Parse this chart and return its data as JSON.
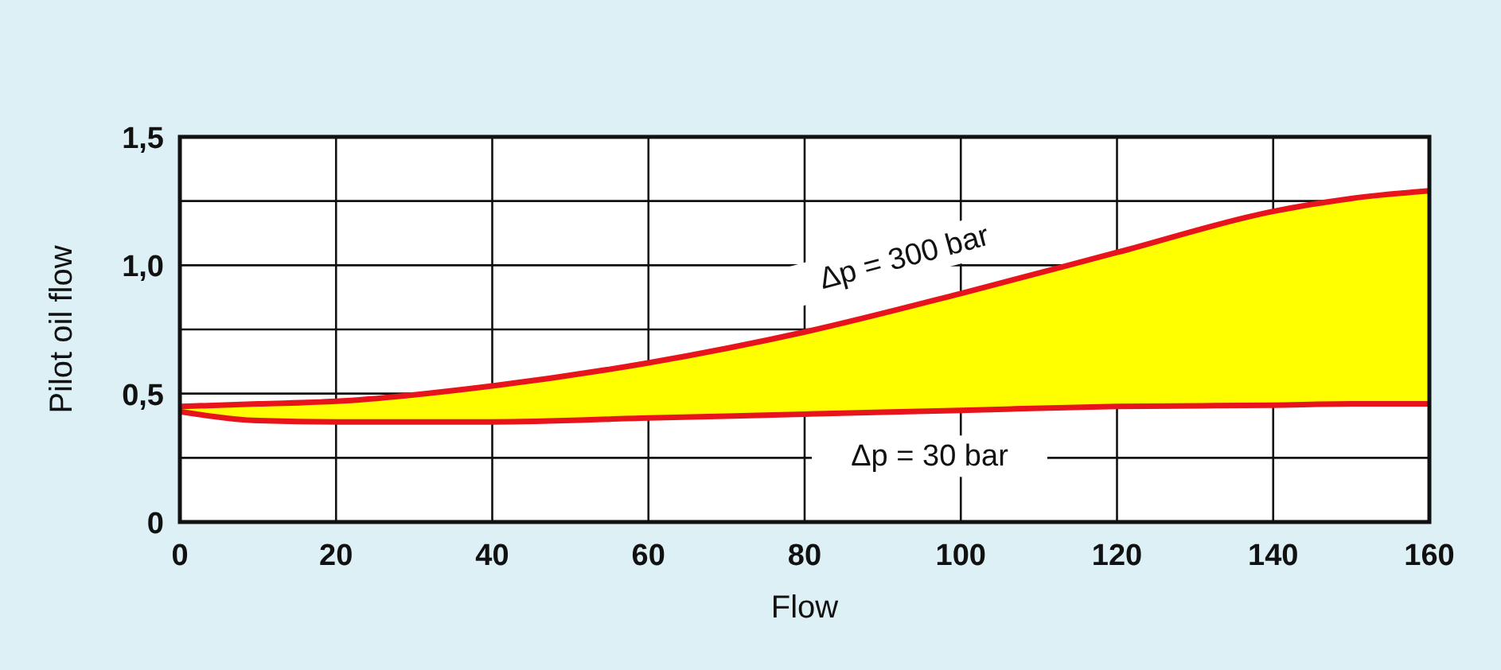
{
  "chart_data": {
    "type": "line",
    "xlabel": "Flow",
    "ylabel": "Pilot oil flow",
    "x": [
      0,
      10,
      20,
      40,
      60,
      80,
      100,
      120,
      140,
      150,
      160
    ],
    "series": [
      {
        "name": "Δp = 300 bar",
        "color": "#e8141c",
        "colors": [
          "#ffff00",
          "#ffff00",
          "#ffff00",
          "#ffff00",
          "#ffff00",
          "#ffff00",
          "#ffff00",
          "#ffff00",
          "#ffff00",
          "#ffff00",
          "#ffff00"
        ],
        "values": [
          0.45,
          0.46,
          0.47,
          0.53,
          0.62,
          0.74,
          0.89,
          1.05,
          1.21,
          1.26,
          1.29
        ],
        "lower": [
          0.43,
          0.395,
          0.39,
          0.39,
          0.405,
          0.42,
          0.435,
          0.45,
          0.455,
          0.46,
          0.46
        ],
        "upper": [
          0.45,
          0.46,
          0.47,
          0.53,
          0.62,
          0.74,
          0.89,
          1.05,
          1.21,
          1.26,
          1.29
        ]
      },
      {
        "name": "Δp = 30 bar",
        "color": "#e8141c",
        "values": [
          0.43,
          0.395,
          0.39,
          0.39,
          0.405,
          0.42,
          0.435,
          0.45,
          0.455,
          0.46,
          0.46
        ]
      }
    ],
    "xlim": [
      0,
      160
    ],
    "xticks": [
      0,
      20,
      40,
      60,
      80,
      100,
      120,
      140,
      160
    ],
    "ylim": [
      0,
      1.5
    ],
    "yticks": [
      {
        "value": 0,
        "label": "0"
      },
      {
        "value": 0.25,
        "label": null
      },
      {
        "value": 0.5,
        "label": "0,5"
      },
      {
        "value": 0.75,
        "label": null
      },
      {
        "value": 1,
        "label": "1,0"
      },
      {
        "value": 1.25,
        "label": null
      },
      {
        "value": 1.5,
        "label": "1,5"
      }
    ],
    "grid": true,
    "marker": "none",
    "line_style": "solid"
  }
}
